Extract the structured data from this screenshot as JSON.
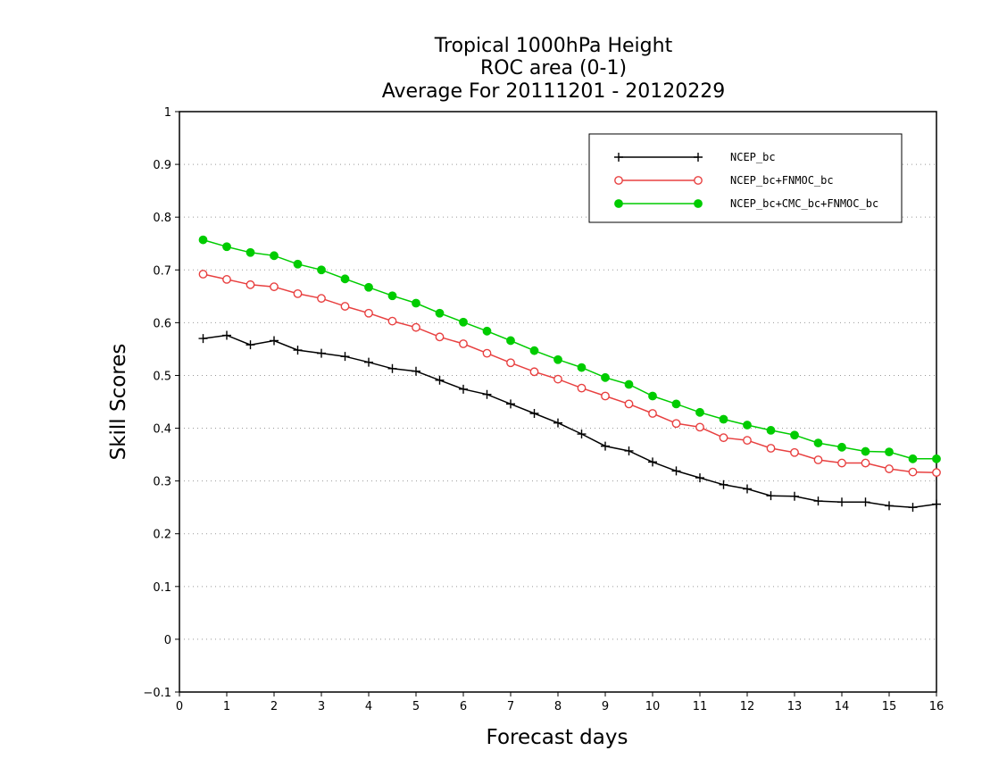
{
  "chart_data": {
    "type": "line",
    "title_lines": [
      "Tropical 1000hPa Height",
      "ROC area (0-1)",
      "Average For 20111201 - 20120229"
    ],
    "xlabel": "Forecast days",
    "ylabel": "Skill Scores",
    "xlim": [
      0,
      16
    ],
    "ylim": [
      -0.1,
      1
    ],
    "x_ticks": [
      0,
      1,
      2,
      3,
      4,
      5,
      6,
      7,
      8,
      9,
      10,
      11,
      12,
      13,
      14,
      15,
      16
    ],
    "x_tick_labels": [
      "0",
      "1",
      "2",
      "3",
      "4",
      "5",
      "6",
      "7",
      "8",
      "9",
      "10",
      "11",
      "12",
      "13",
      "14",
      "15",
      "16"
    ],
    "y_ticks": [
      -0.1,
      0,
      0.1,
      0.2,
      0.3,
      0.4,
      0.5,
      0.6,
      0.7,
      0.8,
      0.9,
      1
    ],
    "y_tick_labels": [
      "−0.1",
      "0",
      "0.1",
      "0.2",
      "0.3",
      "0.4",
      "0.5",
      "0.6",
      "0.7",
      "0.8",
      "0.9",
      "1"
    ],
    "grid": "horizontal-dotted",
    "legend_position": "top-right",
    "x": [
      0.5,
      1,
      1.5,
      2,
      2.5,
      3,
      3.5,
      4,
      4.5,
      5,
      5.5,
      6,
      6.5,
      7,
      7.5,
      8,
      8.5,
      9,
      9.5,
      10,
      10.5,
      11,
      11.5,
      12,
      12.5,
      13,
      13.5,
      14,
      14.5,
      15,
      15.5,
      16
    ],
    "series": [
      {
        "name": "NCEP_bc",
        "color": "#000000",
        "marker": "plus",
        "values": [
          0.57,
          0.576,
          0.558,
          0.566,
          0.548,
          0.542,
          0.536,
          0.525,
          0.513,
          0.508,
          0.491,
          0.474,
          0.464,
          0.446,
          0.428,
          0.41,
          0.389,
          0.366,
          0.357,
          0.336,
          0.319,
          0.306,
          0.293,
          0.285,
          0.272,
          0.271,
          0.262,
          0.26,
          0.26,
          0.253,
          0.25,
          0.256
        ]
      },
      {
        "name": "NCEP_bc+FNMOC_bc",
        "color": "#e84040",
        "marker": "open-circle",
        "values": [
          0.692,
          0.682,
          0.672,
          0.668,
          0.655,
          0.646,
          0.631,
          0.618,
          0.603,
          0.591,
          0.573,
          0.56,
          0.542,
          0.524,
          0.507,
          0.493,
          0.476,
          0.461,
          0.446,
          0.428,
          0.409,
          0.402,
          0.382,
          0.377,
          0.362,
          0.354,
          0.34,
          0.334,
          0.334,
          0.323,
          0.317,
          0.316
        ]
      },
      {
        "name": "NCEP_bc+CMC_bc+FNMOC_bc",
        "color": "#00cc00",
        "marker": "filled-circle",
        "values": [
          0.757,
          0.744,
          0.733,
          0.727,
          0.711,
          0.7,
          0.683,
          0.667,
          0.651,
          0.637,
          0.618,
          0.601,
          0.584,
          0.566,
          0.547,
          0.53,
          0.515,
          0.496,
          0.483,
          0.461,
          0.446,
          0.43,
          0.417,
          0.406,
          0.396,
          0.387,
          0.372,
          0.364,
          0.356,
          0.355,
          0.342,
          0.342
        ]
      }
    ]
  }
}
